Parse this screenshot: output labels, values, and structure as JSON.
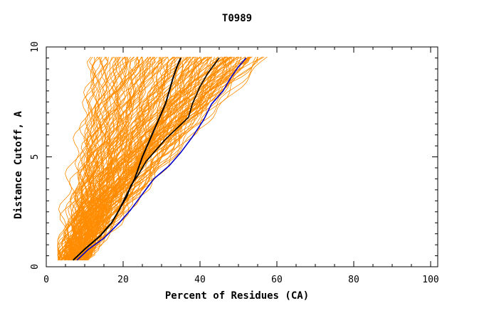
{
  "chart_data": {
    "type": "line",
    "title": "T0989",
    "xlabel": "Percent of Residues (CA)",
    "ylabel": "Distance Cutoff, A",
    "xlim": [
      0,
      100
    ],
    "ylim": [
      0,
      10
    ],
    "x_ticks": [
      0,
      20,
      40,
      60,
      80,
      100
    ],
    "x_tick_labels": [
      "0",
      "20",
      "40",
      "60",
      "80",
      "100"
    ],
    "y_ticks": [
      0,
      5,
      10
    ],
    "y_tick_labels": [
      "0",
      "5",
      "10"
    ],
    "grid": false,
    "legend": "none",
    "colors": {
      "background_models": "#ff8c00",
      "highlight_black": "#000000",
      "highlight_blue": "#0000cc"
    },
    "background_model_count": 160,
    "series": [
      {
        "color": "#000000",
        "x": [
          7,
          10,
          14,
          17,
          19,
          21,
          23,
          24,
          25,
          27,
          29,
          31,
          32,
          33,
          34,
          35
        ],
        "y": [
          0.3,
          0.8,
          1.4,
          2.0,
          2.6,
          3.3,
          4.0,
          4.5,
          5.0,
          5.8,
          6.6,
          7.4,
          8.0,
          8.6,
          9.1,
          9.5
        ]
      },
      {
        "color": "#000000",
        "x": [
          7,
          10,
          14,
          17,
          19,
          21,
          22,
          24,
          26,
          28,
          31,
          34,
          37,
          38,
          40,
          42,
          45
        ],
        "y": [
          0.3,
          0.8,
          1.4,
          2.0,
          2.6,
          3.2,
          3.7,
          4.2,
          4.8,
          5.2,
          5.8,
          6.3,
          6.8,
          7.4,
          8.2,
          8.8,
          9.5
        ]
      },
      {
        "color": "#0000cc",
        "x": [
          8,
          11,
          15,
          19,
          22,
          25,
          28,
          32,
          35,
          38,
          41,
          43,
          46,
          48,
          50,
          52
        ],
        "y": [
          0.3,
          0.8,
          1.3,
          2.0,
          2.6,
          3.3,
          4.0,
          4.6,
          5.2,
          5.9,
          6.7,
          7.4,
          8.0,
          8.6,
          9.1,
          9.5
        ]
      }
    ]
  }
}
